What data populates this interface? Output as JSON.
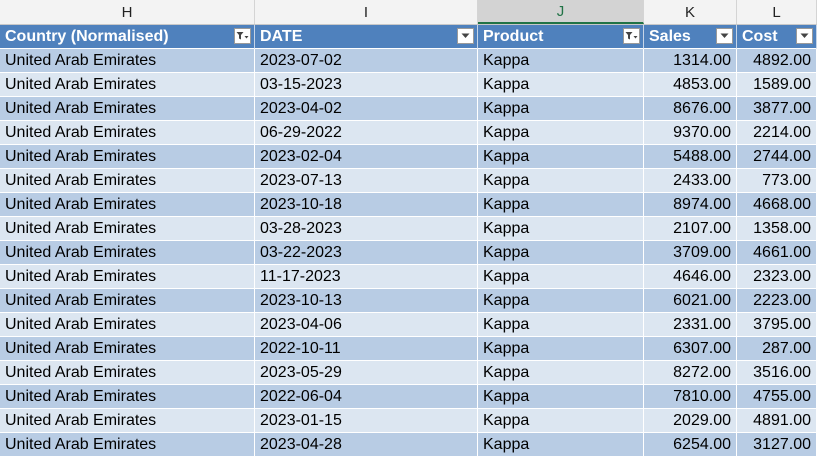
{
  "columns": [
    {
      "letter": "H",
      "header": "Country (Normalised)",
      "filter": "active"
    },
    {
      "letter": "I",
      "header": "DATE",
      "filter": "dropdown"
    },
    {
      "letter": "J",
      "header": "Product",
      "filter": "active"
    },
    {
      "letter": "K",
      "header": "Sales",
      "filter": "dropdown"
    },
    {
      "letter": "L",
      "header": "Cost",
      "filter": "dropdown"
    }
  ],
  "selected_column": "J",
  "rows": [
    [
      "United Arab Emirates",
      "2023-07-02",
      "Kappa",
      "1314.00",
      "4892.00"
    ],
    [
      "United Arab Emirates",
      "03-15-2023",
      "Kappa",
      "4853.00",
      "1589.00"
    ],
    [
      "United Arab Emirates",
      "2023-04-02",
      "Kappa",
      "8676.00",
      "3877.00"
    ],
    [
      "United Arab Emirates",
      "06-29-2022",
      "Kappa",
      "9370.00",
      "2214.00"
    ],
    [
      "United Arab Emirates",
      "2023-02-04",
      "Kappa",
      "5488.00",
      "2744.00"
    ],
    [
      "United Arab Emirates",
      "2023-07-13",
      "Kappa",
      "2433.00",
      "773.00"
    ],
    [
      "United Arab Emirates",
      "2023-10-18",
      "Kappa",
      "8974.00",
      "4668.00"
    ],
    [
      "United Arab Emirates",
      "03-28-2023",
      "Kappa",
      "2107.00",
      "1358.00"
    ],
    [
      "United Arab Emirates",
      "03-22-2023",
      "Kappa",
      "3709.00",
      "4661.00"
    ],
    [
      "United Arab Emirates",
      "11-17-2023",
      "Kappa",
      "4646.00",
      "2323.00"
    ],
    [
      "United Arab Emirates",
      "2023-10-13",
      "Kappa",
      "6021.00",
      "2223.00"
    ],
    [
      "United Arab Emirates",
      "2023-04-06",
      "Kappa",
      "2331.00",
      "3795.00"
    ],
    [
      "United Arab Emirates",
      "2022-10-11",
      "Kappa",
      "6307.00",
      "287.00"
    ],
    [
      "United Arab Emirates",
      "2023-05-29",
      "Kappa",
      "8272.00",
      "3516.00"
    ],
    [
      "United Arab Emirates",
      "2022-06-04",
      "Kappa",
      "7810.00",
      "4755.00"
    ],
    [
      "United Arab Emirates",
      "2023-01-15",
      "Kappa",
      "2029.00",
      "4891.00"
    ],
    [
      "United Arab Emirates",
      "2023-04-28",
      "Kappa",
      "6254.00",
      "3127.00"
    ]
  ],
  "colors": {
    "header_fill": "#4f81bd",
    "band_dark": "#b8cce4",
    "band_light": "#dce6f1",
    "selected_column_accent": "#217346"
  },
  "icons": {
    "filter_active": "filter-funnel-dropdown-icon",
    "filter_dropdown": "dropdown-arrow-icon"
  }
}
